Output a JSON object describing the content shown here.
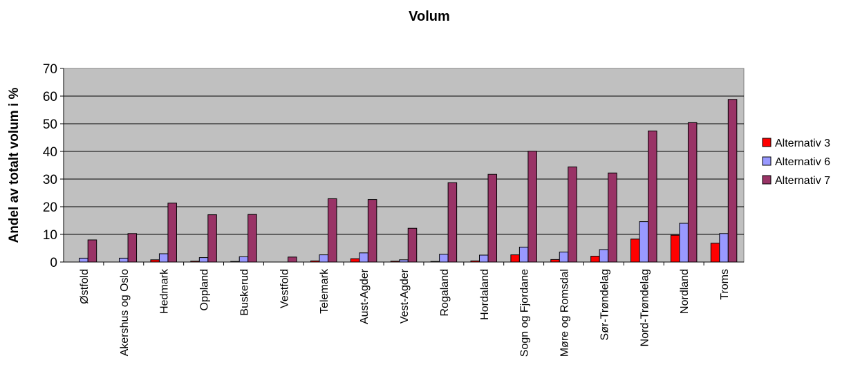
{
  "chart_data": {
    "type": "bar",
    "title": "Volum",
    "xlabel": "",
    "ylabel": "Andel av totalt volum i %",
    "ylim": [
      0,
      70
    ],
    "yticks": [
      0,
      10,
      20,
      30,
      40,
      50,
      60,
      70
    ],
    "grid": true,
    "legend_position": "right",
    "categories": [
      "Østfold",
      "Akershus og Oslo",
      "Hedmark",
      "Oppland",
      "Buskerud",
      "Vestfold",
      "Telemark",
      "Aust-Agder",
      "Vest-Agder",
      "Rogaland",
      "Hordaland",
      "Sogn og Fjordane",
      "Møre og Romsdal",
      "Sør-Trøndelag",
      "Nord-Trøndelag",
      "Nordland",
      "Troms"
    ],
    "series": [
      {
        "name": "Alternativ 3",
        "color": "#ff0000",
        "values": [
          0,
          0,
          0.8,
          0.3,
          0.2,
          0,
          0.4,
          1.2,
          0.3,
          0.2,
          0.4,
          2.6,
          0.9,
          2.1,
          8.3,
          9.7,
          6.8
        ]
      },
      {
        "name": "Alternativ 6",
        "color": "#9999ff",
        "values": [
          1.4,
          1.4,
          3.0,
          1.6,
          1.9,
          0,
          2.6,
          3.3,
          0.8,
          2.8,
          2.5,
          5.4,
          3.6,
          4.5,
          14.6,
          14.0,
          10.3
        ]
      },
      {
        "name": "Alternativ 7",
        "color": "#993366",
        "values": [
          8.0,
          10.3,
          21.3,
          17.1,
          17.2,
          1.8,
          22.9,
          22.6,
          12.2,
          28.7,
          31.7,
          40.1,
          34.4,
          32.2,
          47.4,
          50.4,
          58.8
        ]
      }
    ]
  }
}
